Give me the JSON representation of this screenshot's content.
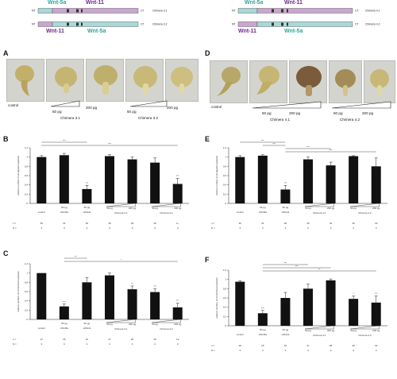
{
  "constructs": {
    "left": [
      {
        "top_label": "Wnt-5a",
        "top_label2": "Wnt-11",
        "nt": "NT",
        "ct": "CT",
        "name": "Chimera 3.1"
      },
      {
        "bottom_label": "Wnt-11",
        "bottom_label2": "Wnt-5a",
        "nt": "NT",
        "ct": "CT",
        "name": "Chimera 3.2"
      }
    ],
    "right": [
      {
        "top_label": "Wnt-5a",
        "top_label2": "Wnt-11",
        "nt": "NT",
        "ct": "CT",
        "name": "Chimera 4.1"
      },
      {
        "bottom_label": "Wnt-11",
        "bottom_label2": "Wnt-5a",
        "nt": "NT",
        "ct": "CT",
        "name": "Chimera 4.2"
      }
    ]
  },
  "panels": {
    "A": {
      "letter": "A",
      "control": "control",
      "dose_low": "50 pg",
      "dose_high": "200 pg",
      "chim1": "Chimera 3.1",
      "chim2": "Chimera 3.2"
    },
    "D": {
      "letter": "D",
      "control": "control",
      "dose_low": "50 pg",
      "dose_high": "200 pg",
      "chim1": "Chimera 4.1",
      "chim2": "Chimera 4.2"
    },
    "B": {
      "letter": "B"
    },
    "C": {
      "letter": "C"
    },
    "E": {
      "letter": "E"
    },
    "F": {
      "letter": "F"
    }
  },
  "colors": {
    "wnt5a": "#2fa39a",
    "wnt11": "#6b2a86",
    "construct_fill": "#c9a6cf",
    "construct_fill2": "#a8d8d8",
    "bar": "#111111"
  },
  "chart_data": [
    {
      "panel": "B",
      "type": "bar",
      "ylabel": "relative number of elongated explants",
      "ylim": [
        0,
        1.2
      ],
      "yticks": [
        "0",
        "0,2",
        "0,4",
        "0,6",
        "0,8",
        "1",
        "1,2"
      ],
      "categories": [
        "control",
        "50 pg xWnt5a",
        "50 pg xWnt11",
        "50 pg Chimera 3.1",
        "200 pg Chimera 3.1",
        "50 pg Chimera 3.2",
        "200 pg Chimera 3.2"
      ],
      "values": [
        1.0,
        1.04,
        0.31,
        1.02,
        0.95,
        0.88,
        0.42
      ],
      "errors": [
        0.03,
        0.04,
        0.08,
        0.03,
        0.05,
        0.1,
        0.12
      ],
      "sig": [
        "",
        "",
        "***",
        "",
        "",
        "",
        "***"
      ],
      "group_labels": {
        "control": "control",
        "w5": "xWnt5a",
        "w11": "xWnt11",
        "c1": "Chimera 3.1",
        "c2": "Chimera 3.2",
        "dose_low": "50 pg",
        "dose_high": "200 pg"
      },
      "n_label": "n =",
      "N_label": "N =",
      "n": [
        "59",
        "31",
        "30",
        "39",
        "29",
        "30",
        "2~"
      ],
      "N": [
        "3",
        "3",
        "4",
        "3",
        "3",
        "3",
        "3"
      ],
      "brackets": [
        "***",
        "***"
      ]
    },
    {
      "panel": "C",
      "type": "bar",
      "ylabel": "relative number of constricted explants",
      "ylim": [
        0,
        1.2
      ],
      "yticks": [
        "0",
        "0,2",
        "0,4",
        "0,6",
        "0,8",
        "1",
        "1,2"
      ],
      "categories": [
        "control",
        "50 pg xWnt5a",
        "50 pg xWnt11",
        "50 pg Chimera 3.1",
        "200 pg Chimera 3.1",
        "50 pg Chimera 3.2",
        "200 pg Chimera 3.2"
      ],
      "values": [
        1.0,
        0.28,
        0.8,
        0.95,
        0.65,
        0.59,
        0.26
      ],
      "errors": [
        0.0,
        0.05,
        0.1,
        0.05,
        0.07,
        0.07,
        0.09
      ],
      "sig": [
        "",
        "***",
        "",
        "",
        "**",
        "***",
        "***"
      ],
      "group_labels": {
        "control": "control",
        "w5": "xWnt5a",
        "w11": "xWnt11",
        "c1": "Chimera 3.1",
        "c2": "Chimera 3.2",
        "dose_low": "50 pg",
        "dose_high": "200 pg"
      },
      "n_label": "n =",
      "N_label": "N =",
      "n": [
        "27",
        "25",
        "10",
        "27",
        "26",
        "29",
        "12"
      ],
      "N": [
        "3",
        "3",
        "4",
        "3",
        "3",
        "2",
        "3"
      ],
      "brackets": [
        "**",
        "*"
      ]
    },
    {
      "panel": "E",
      "type": "bar",
      "ylabel": "relative number of elongated explants",
      "ylim": [
        0,
        1.2
      ],
      "yticks": [
        "0",
        "0,2",
        "0,4",
        "0,6",
        "0,8",
        "1",
        "1,2"
      ],
      "categories": [
        "control",
        "50 pg xWnt5a",
        "50 pg xWnt11",
        "50 pg Chimera 4.1",
        "200 pg Chimera 4.1",
        "50 pg Chimera 4.2",
        "200 pg Chimera 4.2"
      ],
      "values": [
        1.0,
        1.03,
        0.3,
        0.95,
        0.82,
        1.02,
        0.8
      ],
      "errors": [
        0.03,
        0.02,
        0.09,
        0.05,
        0.07,
        0.01,
        0.18
      ],
      "sig": [
        "",
        "",
        "***",
        "",
        "",
        "",
        ""
      ],
      "group_labels": {
        "control": "control",
        "w5": "xWnt5a",
        "w11": "xWnt11",
        "c1": "Chimera 4.1",
        "c2": "Chimera 4.2",
        "dose_low": "50 pg",
        "dose_high": "200 pg"
      },
      "n_label": "n =",
      "N_label": "N =",
      "n": [
        "30",
        "31",
        "30",
        "30",
        "32",
        "30",
        "30"
      ],
      "N": [
        "3",
        "3",
        "3",
        "3",
        "3",
        "3",
        "3"
      ],
      "brackets": [
        "***",
        "***",
        "***",
        "***"
      ]
    },
    {
      "panel": "F",
      "type": "bar",
      "ylabel": "relative number of constricted explants",
      "ylim": [
        0,
        1.2
      ],
      "yticks": [
        "0",
        "0,2",
        "0,4",
        "0,6",
        "0,8",
        "1",
        "1,2"
      ],
      "categories": [
        "control",
        "50 pg xWnt5a",
        "50 pg xWnt11",
        "50 pg Chimera 4.1",
        "200 pg Chimera 4.1",
        "50 pg Chimera 4.2",
        "200 pg Chimera 4.2"
      ],
      "values": [
        0.95,
        0.27,
        0.6,
        0.8,
        0.98,
        0.58,
        0.5
      ],
      "errors": [
        0.02,
        0.06,
        0.12,
        0.1,
        0.03,
        0.06,
        0.14
      ],
      "sig": [
        "",
        "***",
        "",
        "",
        "",
        "*",
        "***"
      ],
      "group_labels": {
        "control": "control",
        "w5": "xWnt5a",
        "w11": "xWnt11",
        "c1": "Chimera 4.1",
        "c2": "Chimera 4.2",
        "dose_low": "50 pg",
        "dose_high": "200 pg"
      },
      "n_label": "n =",
      "N_label": "N =",
      "n": [
        "29",
        "25",
        "15",
        "27",
        "28",
        "35",
        "33"
      ],
      "N": [
        "3",
        "3",
        "3",
        "3",
        "3",
        "3",
        "3"
      ],
      "brackets": [
        "***",
        "***",
        "**"
      ]
    }
  ]
}
